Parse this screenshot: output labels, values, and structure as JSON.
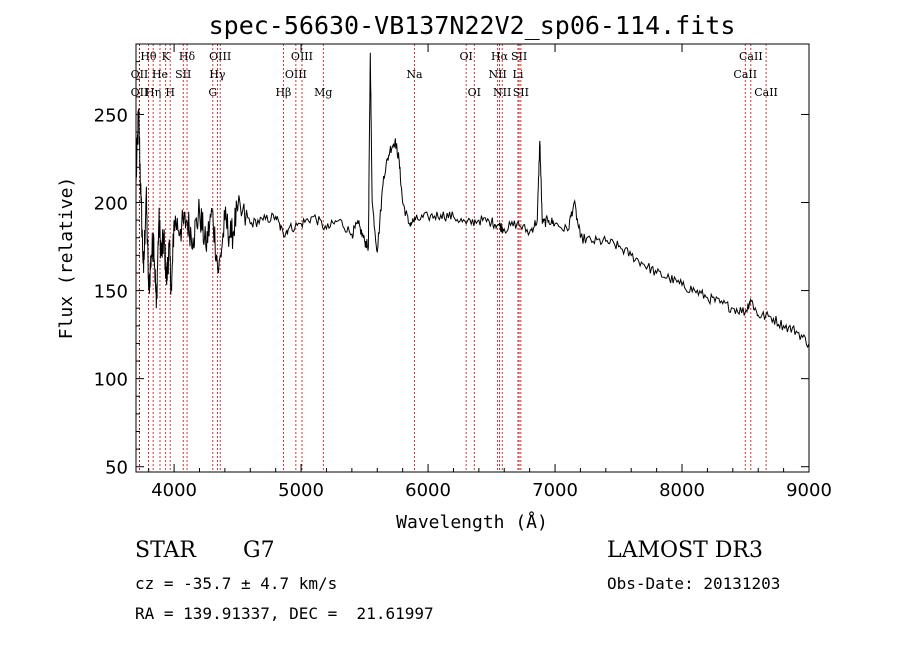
{
  "chart_data": {
    "type": "line",
    "title": "spec-56630-VB137N22V2_sp06-114.fits",
    "xlabel": "Wavelength (Å)",
    "ylabel": "Flux (relative)",
    "xlim": [
      3700,
      9000
    ],
    "ylim": [
      47,
      290
    ],
    "x_ticks": [
      4000,
      5000,
      6000,
      7000,
      8000,
      9000
    ],
    "y_ticks": [
      50,
      100,
      150,
      200,
      250
    ],
    "series": [
      {
        "name": "flux",
        "color": "#000000",
        "x": [
          3700,
          3720,
          3740,
          3760,
          3780,
          3800,
          3820,
          3840,
          3860,
          3880,
          3900,
          3920,
          3940,
          3960,
          3980,
          4000,
          4050,
          4100,
          4150,
          4200,
          4250,
          4300,
          4350,
          4400,
          4450,
          4500,
          4600,
          4700,
          4800,
          4860,
          4900,
          5000,
          5100,
          5200,
          5300,
          5400,
          5450,
          5500,
          5530,
          5545,
          5560,
          5600,
          5650,
          5700,
          5740,
          5770,
          5800,
          5850,
          5900,
          6000,
          6100,
          6200,
          6300,
          6400,
          6500,
          6560,
          6600,
          6700,
          6800,
          6860,
          6880,
          6900,
          6950,
          7000,
          7100,
          7150,
          7200,
          7300,
          7400,
          7500,
          7600,
          7700,
          7800,
          7900,
          8000,
          8100,
          8200,
          8300,
          8400,
          8500,
          8540,
          8600,
          8700,
          8800,
          8900,
          9000
        ],
        "y": [
          210,
          252,
          200,
          160,
          205,
          150,
          170,
          180,
          140,
          190,
          170,
          180,
          155,
          175,
          150,
          190,
          185,
          190,
          180,
          195,
          175,
          195,
          160,
          190,
          180,
          195,
          188,
          190,
          192,
          182,
          185,
          188,
          192,
          185,
          190,
          182,
          188,
          178,
          175,
          285,
          200,
          172,
          215,
          230,
          235,
          225,
          200,
          188,
          190,
          192,
          193,
          192,
          188,
          190,
          189,
          187,
          185,
          188,
          183,
          190,
          235,
          188,
          190,
          188,
          184,
          200,
          180,
          178,
          178,
          175,
          170,
          165,
          160,
          157,
          153,
          150,
          146,
          143,
          140,
          138,
          145,
          136,
          135,
          130,
          127,
          120
        ],
        "samples_per_segment": 10,
        "noise_amp": 3,
        "noise_blue_amp": 10,
        "noise_blue_limit": 4600
      }
    ],
    "lines": [
      {
        "label": "Hθ",
        "wave": 3798,
        "row": 0
      },
      {
        "label": "OII",
        "wave": 3727,
        "row": 1
      },
      {
        "label": "OII",
        "wave": 3727,
        "row": 2
      },
      {
        "label": "He",
        "wave": 3889,
        "row": 1
      },
      {
        "label": "Hη",
        "wave": 3835,
        "row": 2
      },
      {
        "label": "K",
        "wave": 3934,
        "row": 0
      },
      {
        "label": "H",
        "wave": 3969,
        "row": 2
      },
      {
        "label": "SII",
        "wave": 4072,
        "row": 1
      },
      {
        "label": "Hδ",
        "wave": 4102,
        "row": 0
      },
      {
        "label": "OIII",
        "wave": 4363,
        "row": 0
      },
      {
        "label": "Hγ",
        "wave": 4341,
        "row": 1
      },
      {
        "label": "G",
        "wave": 4305,
        "row": 2
      },
      {
        "label": "Hβ",
        "wave": 4861,
        "row": 2
      },
      {
        "label": "OIII",
        "wave": 5007,
        "row": 0
      },
      {
        "label": "OIII",
        "wave": 4959,
        "row": 1
      },
      {
        "label": "Mg",
        "wave": 5175,
        "row": 2
      },
      {
        "label": "Na",
        "wave": 5893,
        "row": 1
      },
      {
        "label": "OI",
        "wave": 6300,
        "row": 0
      },
      {
        "label": "OI",
        "wave": 6364,
        "row": 2
      },
      {
        "label": "Hα",
        "wave": 6563,
        "row": 0
      },
      {
        "label": "NII",
        "wave": 6548,
        "row": 1
      },
      {
        "label": "NII",
        "wave": 6584,
        "row": 2
      },
      {
        "label": "SII",
        "wave": 6717,
        "row": 0
      },
      {
        "label": "Li",
        "wave": 6708,
        "row": 1
      },
      {
        "label": "SII",
        "wave": 6731,
        "row": 2
      },
      {
        "label": "CaII",
        "wave": 8542,
        "row": 0
      },
      {
        "label": "CaII",
        "wave": 8498,
        "row": 1
      },
      {
        "label": "CaII",
        "wave": 8662,
        "row": 2
      }
    ],
    "line_color": "#cc0000"
  },
  "info": {
    "class_label": "STAR",
    "subclass": "G7",
    "redshift": "cz = -35.7 ± 4.7 km/s",
    "coords": "RA = 139.91337, DEC =  21.61997",
    "survey": "LAMOST DR3",
    "obs_date": "Obs-Date: 20131203"
  }
}
